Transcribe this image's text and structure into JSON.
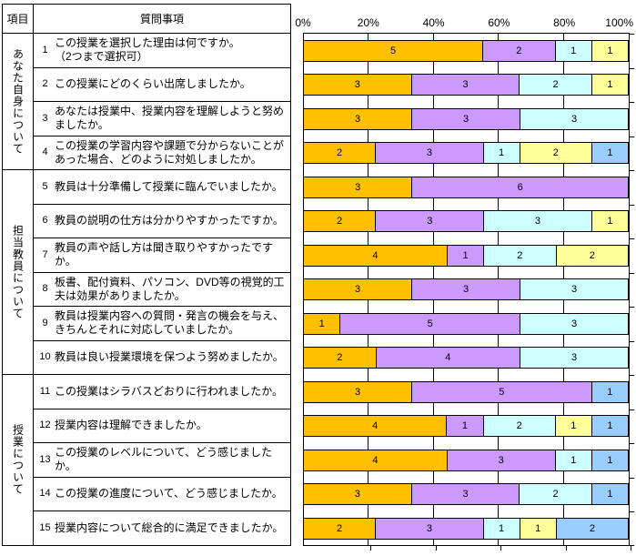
{
  "table": {
    "item_header": "項目",
    "question_header": "質問事項"
  },
  "groups": [
    {
      "label": "あなた自身について",
      "question_count": 4
    },
    {
      "label": "担当教員について",
      "question_count": 6
    },
    {
      "label": "授業について",
      "question_count": 5
    }
  ],
  "chart_data": {
    "type": "bar",
    "stacked": true,
    "orientation": "horizontal",
    "title": "",
    "xlabel": "",
    "ylabel": "",
    "axis_ticks": [
      "0%",
      "20%",
      "40%",
      "60%",
      "80%",
      "100%"
    ],
    "xlim_percent": [
      0,
      100
    ],
    "row_total": 9,
    "grid": true,
    "legend": "none",
    "palette": {
      "orange": "#FFC000",
      "purple": "#CC99FF",
      "cyan": "#CCFFFF",
      "yellow": "#FFFF99",
      "blue": "#99CCFF"
    },
    "rows": [
      {
        "no": "1",
        "group": "あなた自身について",
        "question": "この授業を選択した理由は何ですか。\n（2つまで選択可）",
        "segments": [
          [
            "orange",
            5
          ],
          [
            "purple",
            2
          ],
          [
            "cyan",
            1
          ],
          [
            "yellow",
            1
          ]
        ]
      },
      {
        "no": "2",
        "group": "あなた自身について",
        "question": "この授業にどのくらい出席しましたか。",
        "segments": [
          [
            "orange",
            3
          ],
          [
            "purple",
            3
          ],
          [
            "cyan",
            2
          ],
          [
            "yellow",
            1
          ]
        ]
      },
      {
        "no": "3",
        "group": "あなた自身について",
        "question": "あなたは授業中、授業内容を理解しようと努めましたか。",
        "segments": [
          [
            "orange",
            3
          ],
          [
            "purple",
            3
          ],
          [
            "cyan",
            3
          ]
        ]
      },
      {
        "no": "4",
        "group": "あなた自身について",
        "question": "この授業の学習内容や課題で分からないことがあった場合、どのように対処しましたか。",
        "segments": [
          [
            "orange",
            2
          ],
          [
            "purple",
            3
          ],
          [
            "cyan",
            1
          ],
          [
            "yellow",
            2
          ],
          [
            "blue",
            1
          ]
        ]
      },
      {
        "no": "5",
        "group": "担当教員について",
        "question": "教員は十分準備して授業に臨んでいましたか。",
        "segments": [
          [
            "orange",
            3
          ],
          [
            "purple",
            6
          ]
        ]
      },
      {
        "no": "6",
        "group": "担当教員について",
        "question": "教員の説明の仕方は分かりやすかったですか。",
        "segments": [
          [
            "orange",
            2
          ],
          [
            "purple",
            3
          ],
          [
            "cyan",
            3
          ],
          [
            "yellow",
            1
          ]
        ]
      },
      {
        "no": "7",
        "group": "担当教員について",
        "question": "教員の声や話し方は聞き取りやすかったですか。",
        "segments": [
          [
            "orange",
            4
          ],
          [
            "purple",
            1
          ],
          [
            "cyan",
            2
          ],
          [
            "yellow",
            2
          ]
        ]
      },
      {
        "no": "8",
        "group": "担当教員について",
        "question": "板書、配付資料、パソコン、DVD等の視覚的工夫は効果がありましたか。",
        "segments": [
          [
            "orange",
            3
          ],
          [
            "purple",
            3
          ],
          [
            "cyan",
            3
          ]
        ]
      },
      {
        "no": "9",
        "group": "担当教員について",
        "question": "教員は授業内容への質問・発言の機会を与え、きちんとそれに対応していましたか。",
        "segments": [
          [
            "orange",
            1
          ],
          [
            "purple",
            5
          ],
          [
            "cyan",
            3
          ]
        ]
      },
      {
        "no": "10",
        "group": "担当教員について",
        "question": "教員は良い授業環境を保つよう努めましたか。",
        "segments": [
          [
            "orange",
            2
          ],
          [
            "purple",
            4
          ],
          [
            "cyan",
            3
          ]
        ]
      },
      {
        "no": "11",
        "group": "授業について",
        "question": "この授業はシラバスどおりに行われましたか。",
        "segments": [
          [
            "orange",
            3
          ],
          [
            "purple",
            5
          ],
          [
            "blue",
            1
          ]
        ]
      },
      {
        "no": "12",
        "group": "授業について",
        "question": "授業内容は理解できましたか。",
        "segments": [
          [
            "orange",
            4
          ],
          [
            "purple",
            1
          ],
          [
            "cyan",
            2
          ],
          [
            "yellow",
            1
          ],
          [
            "blue",
            1
          ]
        ]
      },
      {
        "no": "13",
        "group": "授業について",
        "question": "この授業のレベルについて、どう感じましたか。",
        "segments": [
          [
            "orange",
            4
          ],
          [
            "purple",
            3
          ],
          [
            "cyan",
            1
          ],
          [
            "blue",
            1
          ]
        ]
      },
      {
        "no": "14",
        "group": "授業について",
        "question": "この授業の進度について、どう感じましたか。",
        "segments": [
          [
            "orange",
            3
          ],
          [
            "purple",
            3
          ],
          [
            "cyan",
            2
          ],
          [
            "blue",
            1
          ]
        ]
      },
      {
        "no": "15",
        "group": "授業について",
        "question": "授業内容について総合的に満足できましたか。",
        "segments": [
          [
            "orange",
            2
          ],
          [
            "purple",
            3
          ],
          [
            "cyan",
            1
          ],
          [
            "yellow",
            1
          ],
          [
            "blue",
            2
          ]
        ]
      }
    ]
  }
}
